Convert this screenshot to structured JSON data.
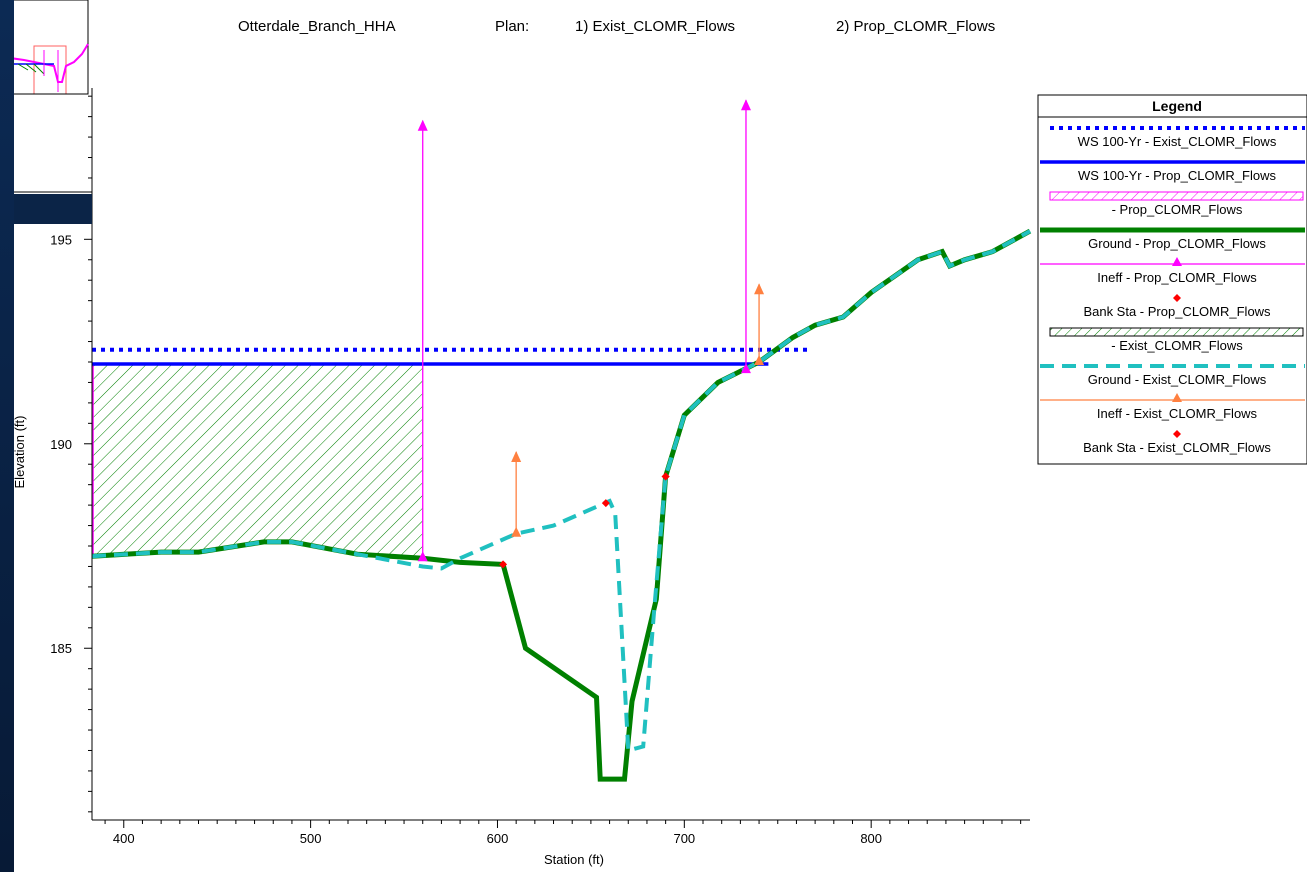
{
  "header": {
    "project": "Otterdale_Branch_HHA",
    "plan_label": "Plan:",
    "plan1": "1) Exist_CLOMR_Flows",
    "plan2": "2) Prop_CLOMR_Flows"
  },
  "legend": {
    "title": "Legend",
    "items": [
      {
        "label": "WS 100-Yr - Exist_CLOMR_Flows",
        "color": "#0000ff",
        "style": "dotted-line"
      },
      {
        "label": "WS 100-Yr - Prop_CLOMR_Flows",
        "color": "#0000ff",
        "style": "solid-line"
      },
      {
        "label": "- Prop_CLOMR_Flows",
        "color": "#ff00ff",
        "style": "hatch-magenta"
      },
      {
        "label": "Ground - Prop_CLOMR_Flows",
        "color": "#008000",
        "style": "thick-line"
      },
      {
        "label": "Ineff - Prop_CLOMR_Flows",
        "color": "#ff00ff",
        "style": "arrow-line"
      },
      {
        "label": "Bank Sta - Prop_CLOMR_Flows",
        "color": "#ff0000",
        "style": "point"
      },
      {
        "label": "- Exist_CLOMR_Flows",
        "color": "#008000",
        "style": "hatch-green"
      },
      {
        "label": "Ground - Exist_CLOMR_Flows",
        "color": "#20c0c0",
        "style": "dashed-line"
      },
      {
        "label": "Ineff - Exist_CLOMR_Flows",
        "color": "#ff8040",
        "style": "arrow-line"
      },
      {
        "label": "Bank Sta - Exist_CLOMR_Flows",
        "color": "#ff0000",
        "style": "point"
      }
    ]
  },
  "chart_data": {
    "type": "line",
    "xlabel": "Station (ft)",
    "ylabel": "Elevation (ft)",
    "xlim": [
      383,
      885
    ],
    "ylim": [
      180.8,
      198.7
    ],
    "xticks": [
      400,
      500,
      600,
      700,
      800
    ],
    "yticks": [
      185,
      190,
      195
    ],
    "grid": false,
    "legend_position": "right",
    "series": [
      {
        "name": "WS 100-Yr - Exist_CLOMR_Flows",
        "color": "#0000ff",
        "style": "dotted",
        "x": [
          383,
          768
        ],
        "y": [
          192.3,
          192.3
        ]
      },
      {
        "name": "WS 100-Yr - Prop_CLOMR_Flows",
        "color": "#0000ff",
        "style": "solid",
        "x": [
          383,
          745
        ],
        "y": [
          191.95,
          191.95
        ]
      },
      {
        "name": "Ground - Prop_CLOMR_Flows",
        "color": "#008000",
        "style": "thick",
        "x": [
          383,
          420,
          440,
          475,
          490,
          525,
          560,
          580,
          603,
          615,
          653,
          655,
          668,
          672,
          685,
          690,
          700,
          718,
          740,
          758,
          770,
          785,
          800,
          825,
          838,
          842,
          850,
          865,
          885
        ],
        "y": [
          187.25,
          187.35,
          187.35,
          187.6,
          187.6,
          187.3,
          187.2,
          187.1,
          187.05,
          185.0,
          183.8,
          181.8,
          181.8,
          183.7,
          186.2,
          189.2,
          190.7,
          191.5,
          192.0,
          192.6,
          192.9,
          193.1,
          193.7,
          194.5,
          194.7,
          194.35,
          194.5,
          194.7,
          195.2
        ]
      },
      {
        "name": "Ground - Exist_CLOMR_Flows",
        "color": "#20c0c0",
        "style": "dashed",
        "x": [
          383,
          420,
          440,
          475,
          490,
          525,
          560,
          570,
          580,
          610,
          630,
          660,
          663,
          670,
          678,
          684,
          690,
          700,
          718,
          740,
          758,
          770,
          785,
          800,
          825,
          838,
          842,
          850,
          865,
          885
        ],
        "y": [
          187.25,
          187.35,
          187.35,
          187.6,
          187.6,
          187.3,
          187.0,
          186.95,
          187.2,
          187.8,
          188.0,
          188.6,
          188.3,
          182.5,
          182.6,
          186.0,
          189.2,
          190.7,
          191.5,
          192.0,
          192.6,
          192.9,
          193.1,
          193.7,
          194.5,
          194.7,
          194.35,
          194.5,
          194.7,
          195.2
        ]
      },
      {
        "name": "Ineff - Prop_CLOMR_Flows",
        "color": "#ff00ff",
        "style": "arrow",
        "x": [
          560,
          733
        ],
        "y": [
          187.2,
          191.8
        ],
        "top": [
          197.9,
          198.4
        ]
      },
      {
        "name": "Ineff - Exist_CLOMR_Flows",
        "color": "#ff8040",
        "style": "arrow",
        "x": [
          610,
          740
        ],
        "y": [
          187.8,
          192.0
        ],
        "top": [
          189.8,
          193.9
        ]
      },
      {
        "name": "Bank Sta - Prop_CLOMR_Flows",
        "color": "#ff0000",
        "style": "point",
        "x": [
          603,
          690
        ],
        "y": [
          187.05,
          189.2
        ]
      },
      {
        "name": "Bank Sta - Exist_CLOMR_Flows",
        "color": "#ff0000",
        "style": "point",
        "x": [
          658,
          690
        ],
        "y": [
          188.55,
          189.2
        ]
      },
      {
        "name": "- Exist_CLOMR_Flows",
        "color": "#008000",
        "style": "hatch",
        "x": [
          383,
          560
        ],
        "wse": 191.95
      }
    ]
  }
}
